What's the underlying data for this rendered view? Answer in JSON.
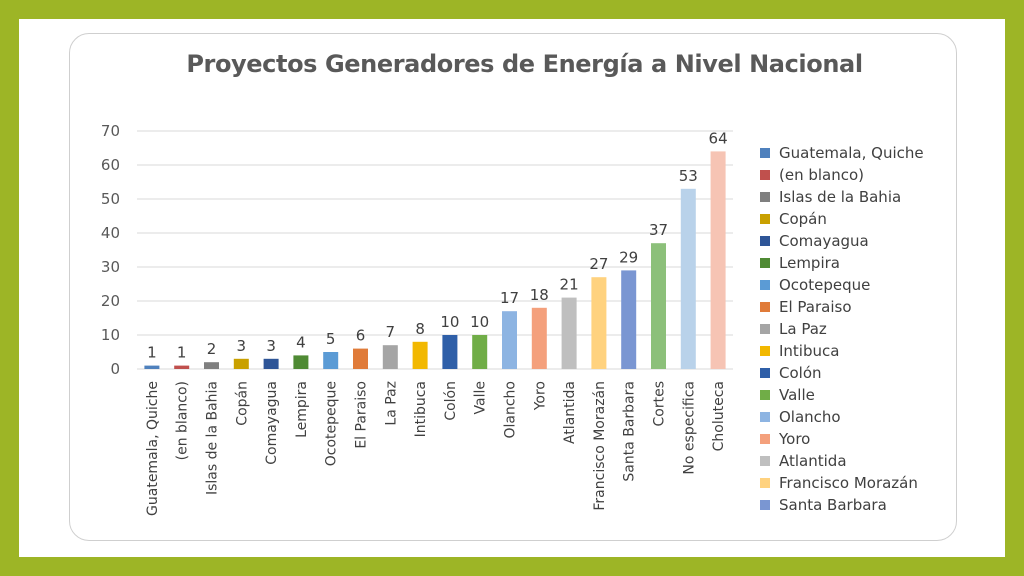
{
  "chart_data": {
    "type": "bar",
    "title": "Proyectos Generadores de Energía a Nivel Nacional",
    "categories": [
      "Guatemala, Quiche",
      "(en blanco)",
      "Islas de la Bahia",
      "Copán",
      "Comayagua",
      "Lempira",
      "Ocotepeque",
      "El Paraiso",
      "La Paz",
      "Intibuca",
      "Colón",
      "Valle",
      "Olancho",
      "Yoro",
      "Atlantida",
      "Francisco Morazán",
      "Santa Barbara",
      "Cortes",
      "No especifica",
      "Choluteca"
    ],
    "values": [
      1,
      1,
      2,
      3,
      3,
      4,
      5,
      6,
      7,
      8,
      10,
      10,
      17,
      18,
      21,
      27,
      29,
      37,
      53,
      64
    ],
    "colors": [
      "#4f81bd",
      "#c0504d",
      "#7f7f7f",
      "#c9a000",
      "#2e5597",
      "#4f8a34",
      "#5b9bd5",
      "#e07b39",
      "#a5a5a5",
      "#f2b800",
      "#2f5fa8",
      "#70ad47",
      "#8db4e2",
      "#f4a07c",
      "#bfbfbf",
      "#ffd27f",
      "#7a96d2",
      "#8cc07a",
      "#b9d2ea",
      "#f6c4b4"
    ],
    "yticks": [
      0,
      10,
      20,
      30,
      40,
      50,
      60,
      70
    ],
    "ylim": [
      0,
      70
    ],
    "grid": true,
    "data_labels": true,
    "legend": {
      "position": "right",
      "entries": [
        "Guatemala, Quiche",
        "(en blanco)",
        "Islas de la Bahia",
        "Copán",
        "Comayagua",
        "Lempira",
        "Ocotepeque",
        "El Paraiso",
        "La Paz",
        "Intibuca",
        "Colón",
        "Valle",
        "Olancho",
        "Yoro",
        "Atlantida",
        "Francisco Morazán",
        "Santa Barbara"
      ]
    }
  }
}
